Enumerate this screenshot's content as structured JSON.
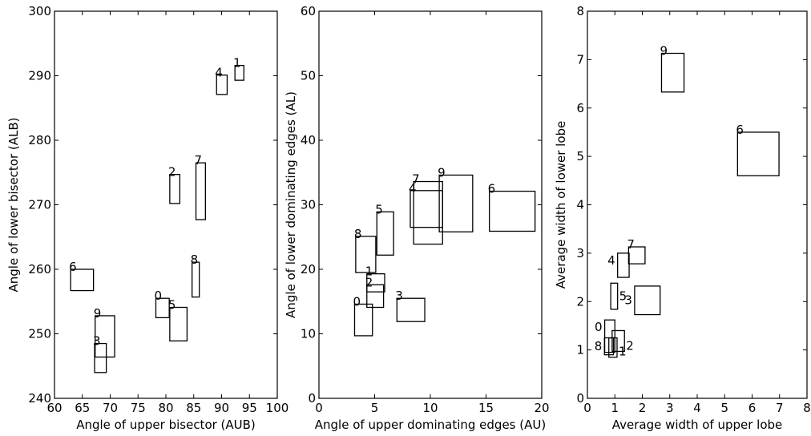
{
  "chart_data": [
    {
      "type": "box",
      "xlabel": "Angle of upper bisector (AUB)",
      "ylabel": "Angle of lower bisector (ALB)",
      "xlim": [
        60,
        100
      ],
      "ylim": [
        240,
        300
      ],
      "xticks": [
        60,
        65,
        70,
        75,
        80,
        85,
        90,
        95,
        100
      ],
      "yticks": [
        240,
        250,
        260,
        270,
        280,
        290,
        300
      ],
      "grid": false,
      "boxes": [
        {
          "label": "0",
          "x": [
            78.2,
            80.6
          ],
          "y": [
            252.5,
            255.5
          ]
        },
        {
          "label": "1",
          "x": [
            92.4,
            94.0
          ],
          "y": [
            289.3,
            291.6
          ]
        },
        {
          "label": "2",
          "x": [
            80.7,
            82.5
          ],
          "y": [
            270.2,
            274.7
          ]
        },
        {
          "label": "3",
          "x": [
            67.2,
            69.3
          ],
          "y": [
            244.0,
            248.5
          ]
        },
        {
          "label": "4",
          "x": [
            89.1,
            91.0
          ],
          "y": [
            287.1,
            290.1
          ]
        },
        {
          "label": "5",
          "x": [
            80.7,
            83.8
          ],
          "y": [
            248.9,
            254.1
          ]
        },
        {
          "label": "6",
          "x": [
            62.9,
            67.0
          ],
          "y": [
            256.7,
            260.0
          ]
        },
        {
          "label": "7",
          "x": [
            85.4,
            87.1
          ],
          "y": [
            267.7,
            276.5
          ]
        },
        {
          "label": "8",
          "x": [
            84.7,
            86.0
          ],
          "y": [
            255.7,
            261.1
          ]
        },
        {
          "label": "9",
          "x": [
            67.3,
            70.8
          ],
          "y": [
            246.4,
            252.8
          ]
        }
      ]
    },
    {
      "type": "box",
      "xlabel": "Angle of upper dominating edges (AU)",
      "ylabel": "Angle of lower dominating edges (AL)",
      "xlim": [
        0,
        20
      ],
      "ylim": [
        0,
        60
      ],
      "xticks": [
        0,
        5,
        10,
        15,
        20
      ],
      "yticks": [
        0,
        10,
        20,
        30,
        40,
        50,
        60
      ],
      "grid": false,
      "boxes": [
        {
          "label": "0",
          "x": [
            3.2,
            4.8
          ],
          "y": [
            9.7,
            14.6
          ]
        },
        {
          "label": "1",
          "x": [
            4.3,
            5.9
          ],
          "y": [
            16.5,
            19.3
          ]
        },
        {
          "label": "2",
          "x": [
            4.3,
            5.8
          ],
          "y": [
            14.1,
            17.6
          ]
        },
        {
          "label": "3",
          "x": [
            7.0,
            9.5
          ],
          "y": [
            11.9,
            15.5
          ]
        },
        {
          "label": "4",
          "x": [
            8.2,
            11.1
          ],
          "y": [
            26.5,
            32.2
          ]
        },
        {
          "label": "5",
          "x": [
            5.2,
            6.7
          ],
          "y": [
            22.2,
            28.9
          ]
        },
        {
          "label": "6",
          "x": [
            15.3,
            19.4
          ],
          "y": [
            25.9,
            32.1
          ]
        },
        {
          "label": "7",
          "x": [
            8.5,
            11.1
          ],
          "y": [
            23.9,
            33.6
          ]
        },
        {
          "label": "8",
          "x": [
            3.3,
            5.1
          ],
          "y": [
            19.5,
            25.1
          ]
        },
        {
          "label": "9",
          "x": [
            10.8,
            13.8
          ],
          "y": [
            25.8,
            34.6
          ]
        }
      ]
    },
    {
      "type": "box",
      "xlabel": "Average width of upper lobe",
      "ylabel": "Average width of lower lobe",
      "xlim": [
        0,
        8
      ],
      "ylim": [
        0,
        8
      ],
      "xticks": [
        0,
        1,
        2,
        3,
        4,
        5,
        6,
        7,
        8
      ],
      "yticks": [
        0,
        1,
        2,
        3,
        4,
        5,
        6,
        7,
        8
      ],
      "grid": false,
      "boxes": [
        {
          "label": "0",
          "x": [
            0.63,
            1.0
          ],
          "y": [
            0.95,
            1.62
          ]
        },
        {
          "label": "1",
          "x": [
            0.78,
            1.08
          ],
          "y": [
            0.85,
            1.25
          ]
        },
        {
          "label": "2",
          "x": [
            0.9,
            1.35
          ],
          "y": [
            0.97,
            1.4
          ]
        },
        {
          "label": "3",
          "x": [
            1.72,
            2.65
          ],
          "y": [
            1.73,
            2.32
          ]
        },
        {
          "label": "4",
          "x": [
            1.1,
            1.52
          ],
          "y": [
            2.5,
            3.0
          ]
        },
        {
          "label": "5",
          "x": [
            0.85,
            1.1
          ],
          "y": [
            1.84,
            2.38
          ]
        },
        {
          "label": "6",
          "x": [
            5.47,
            6.98
          ],
          "y": [
            4.6,
            5.5
          ]
        },
        {
          "label": "7",
          "x": [
            1.5,
            2.1
          ],
          "y": [
            2.78,
            3.13
          ]
        },
        {
          "label": "8",
          "x": [
            0.62,
            0.95
          ],
          "y": [
            0.9,
            1.25
          ]
        },
        {
          "label": "9",
          "x": [
            2.7,
            3.52
          ],
          "y": [
            6.33,
            7.13
          ]
        }
      ]
    }
  ]
}
